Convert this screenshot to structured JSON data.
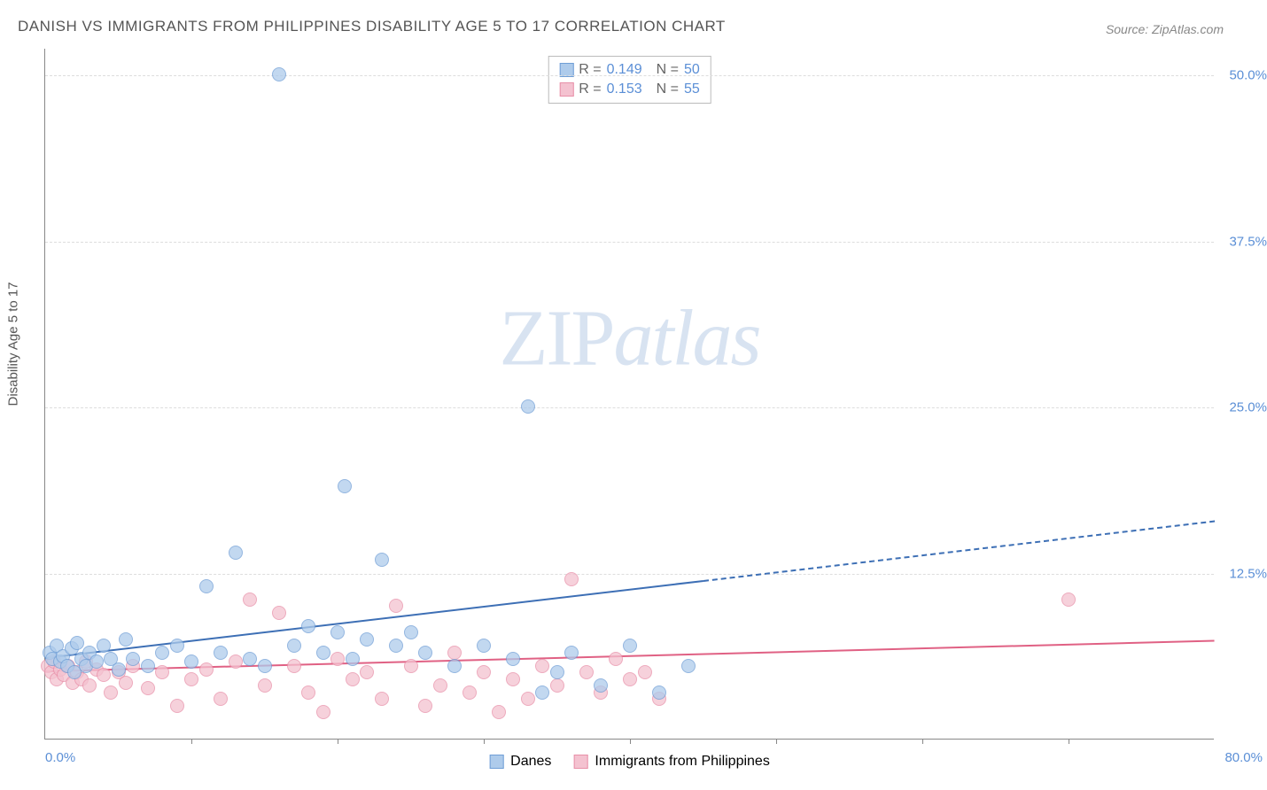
{
  "title": "DANISH VS IMMIGRANTS FROM PHILIPPINES DISABILITY AGE 5 TO 17 CORRELATION CHART",
  "source": "Source: ZipAtlas.com",
  "y_axis_label": "Disability Age 5 to 17",
  "watermark_a": "ZIP",
  "watermark_b": "atlas",
  "chart": {
    "type": "scatter",
    "xlim": [
      0,
      80
    ],
    "ylim": [
      0,
      52
    ],
    "x_ticks": [
      10,
      20,
      30,
      40,
      50,
      60,
      70
    ],
    "x_start_label": "0.0%",
    "x_end_label": "80.0%",
    "y_grid": [
      12.5,
      25.0,
      37.5,
      50.0
    ],
    "y_grid_labels": [
      "12.5%",
      "25.0%",
      "37.5%",
      "50.0%"
    ],
    "background_color": "#ffffff",
    "grid_color": "#dddddd",
    "axis_color": "#888888",
    "tick_label_color": "#5b8fd6",
    "point_radius": 8
  },
  "series": {
    "danes": {
      "label": "Danes",
      "fill": "#aecbeb",
      "stroke": "#6f9ed6",
      "trend_color": "#3d6fb5",
      "r": "0.149",
      "n": "50",
      "trend": {
        "x1": 0,
        "y1": 6.2,
        "x2": 45,
        "y2": 12.0,
        "dash_x2": 80,
        "dash_y2": 16.5
      },
      "points": [
        [
          0.3,
          6.5
        ],
        [
          0.5,
          6.0
        ],
        [
          0.8,
          7.0
        ],
        [
          1.0,
          5.8
        ],
        [
          1.2,
          6.2
        ],
        [
          1.5,
          5.5
        ],
        [
          1.8,
          6.8
        ],
        [
          2.0,
          5.0
        ],
        [
          2.2,
          7.2
        ],
        [
          2.5,
          6.0
        ],
        [
          2.8,
          5.5
        ],
        [
          3.0,
          6.5
        ],
        [
          3.5,
          5.8
        ],
        [
          4.0,
          7.0
        ],
        [
          4.5,
          6.0
        ],
        [
          5.0,
          5.2
        ],
        [
          5.5,
          7.5
        ],
        [
          6.0,
          6.0
        ],
        [
          7.0,
          5.5
        ],
        [
          8.0,
          6.5
        ],
        [
          9.0,
          7.0
        ],
        [
          10.0,
          5.8
        ],
        [
          11.0,
          11.5
        ],
        [
          12.0,
          6.5
        ],
        [
          13.0,
          14.0
        ],
        [
          14.0,
          6.0
        ],
        [
          15.0,
          5.5
        ],
        [
          16.0,
          50.0
        ],
        [
          17.0,
          7.0
        ],
        [
          18.0,
          8.5
        ],
        [
          19.0,
          6.5
        ],
        [
          20.0,
          8.0
        ],
        [
          21.0,
          6.0
        ],
        [
          20.5,
          19.0
        ],
        [
          22.0,
          7.5
        ],
        [
          23.0,
          13.5
        ],
        [
          24.0,
          7.0
        ],
        [
          25.0,
          8.0
        ],
        [
          26.0,
          6.5
        ],
        [
          28.0,
          5.5
        ],
        [
          30.0,
          7.0
        ],
        [
          32.0,
          6.0
        ],
        [
          33.0,
          25.0
        ],
        [
          34.0,
          3.5
        ],
        [
          35.0,
          5.0
        ],
        [
          36.0,
          6.5
        ],
        [
          38.0,
          4.0
        ],
        [
          40.0,
          7.0
        ],
        [
          42.0,
          3.5
        ],
        [
          44.0,
          5.5
        ]
      ]
    },
    "philippines": {
      "label": "Immigrants from Philippines",
      "fill": "#f4c2d0",
      "stroke": "#e88fa8",
      "trend_color": "#e06184",
      "r": "0.153",
      "n": "55",
      "trend": {
        "x1": 0,
        "y1": 5.2,
        "x2": 80,
        "y2": 7.5
      },
      "points": [
        [
          0.2,
          5.5
        ],
        [
          0.4,
          5.0
        ],
        [
          0.6,
          5.8
        ],
        [
          0.8,
          4.5
        ],
        [
          1.0,
          5.2
        ],
        [
          1.3,
          4.8
        ],
        [
          1.6,
          5.5
        ],
        [
          1.9,
          4.2
        ],
        [
          2.2,
          5.0
        ],
        [
          2.5,
          4.5
        ],
        [
          2.8,
          5.8
        ],
        [
          3.0,
          4.0
        ],
        [
          3.5,
          5.2
        ],
        [
          4.0,
          4.8
        ],
        [
          4.5,
          3.5
        ],
        [
          5.0,
          5.0
        ],
        [
          5.5,
          4.2
        ],
        [
          6.0,
          5.5
        ],
        [
          7.0,
          3.8
        ],
        [
          8.0,
          5.0
        ],
        [
          9.0,
          2.5
        ],
        [
          10.0,
          4.5
        ],
        [
          11.0,
          5.2
        ],
        [
          12.0,
          3.0
        ],
        [
          13.0,
          5.8
        ],
        [
          14.0,
          10.5
        ],
        [
          15.0,
          4.0
        ],
        [
          16.0,
          9.5
        ],
        [
          17.0,
          5.5
        ],
        [
          18.0,
          3.5
        ],
        [
          19.0,
          2.0
        ],
        [
          20.0,
          6.0
        ],
        [
          21.0,
          4.5
        ],
        [
          22.0,
          5.0
        ],
        [
          23.0,
          3.0
        ],
        [
          24.0,
          10.0
        ],
        [
          25.0,
          5.5
        ],
        [
          26.0,
          2.5
        ],
        [
          27.0,
          4.0
        ],
        [
          28.0,
          6.5
        ],
        [
          29.0,
          3.5
        ],
        [
          30.0,
          5.0
        ],
        [
          31.0,
          2.0
        ],
        [
          32.0,
          4.5
        ],
        [
          33.0,
          3.0
        ],
        [
          34.0,
          5.5
        ],
        [
          35.0,
          4.0
        ],
        [
          36.0,
          12.0
        ],
        [
          37.0,
          5.0
        ],
        [
          38.0,
          3.5
        ],
        [
          39.0,
          6.0
        ],
        [
          40.0,
          4.5
        ],
        [
          41.0,
          5.0
        ],
        [
          42.0,
          3.0
        ],
        [
          70.0,
          10.5
        ]
      ]
    }
  },
  "legend_top": {
    "r_prefix": "R =",
    "n_prefix": "N ="
  }
}
